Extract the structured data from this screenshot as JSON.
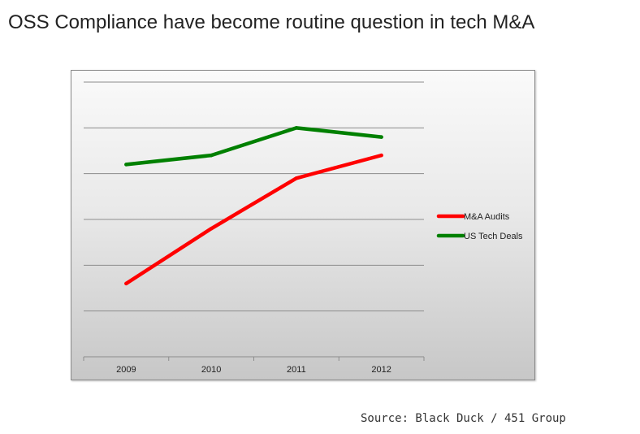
{
  "slide": {
    "title": "OSS Compliance have become routine question in tech M&A",
    "source": "Source: Black Duck / 451 Group"
  },
  "chart_data": {
    "type": "line",
    "title": "",
    "xlabel": "",
    "ylabel": "",
    "categories": [
      "2009",
      "2010",
      "2011",
      "2012"
    ],
    "ylim": [
      0,
      6
    ],
    "grid": true,
    "y_tick_labels_shown": false,
    "legend_position": "right",
    "series": [
      {
        "name": "M&A Audits",
        "color": "#ff0000",
        "values": [
          1.6,
          2.8,
          3.9,
          4.4
        ]
      },
      {
        "name": "US Tech Deals",
        "color": "#008000",
        "values": [
          4.2,
          4.4,
          5.0,
          4.8
        ]
      }
    ]
  }
}
